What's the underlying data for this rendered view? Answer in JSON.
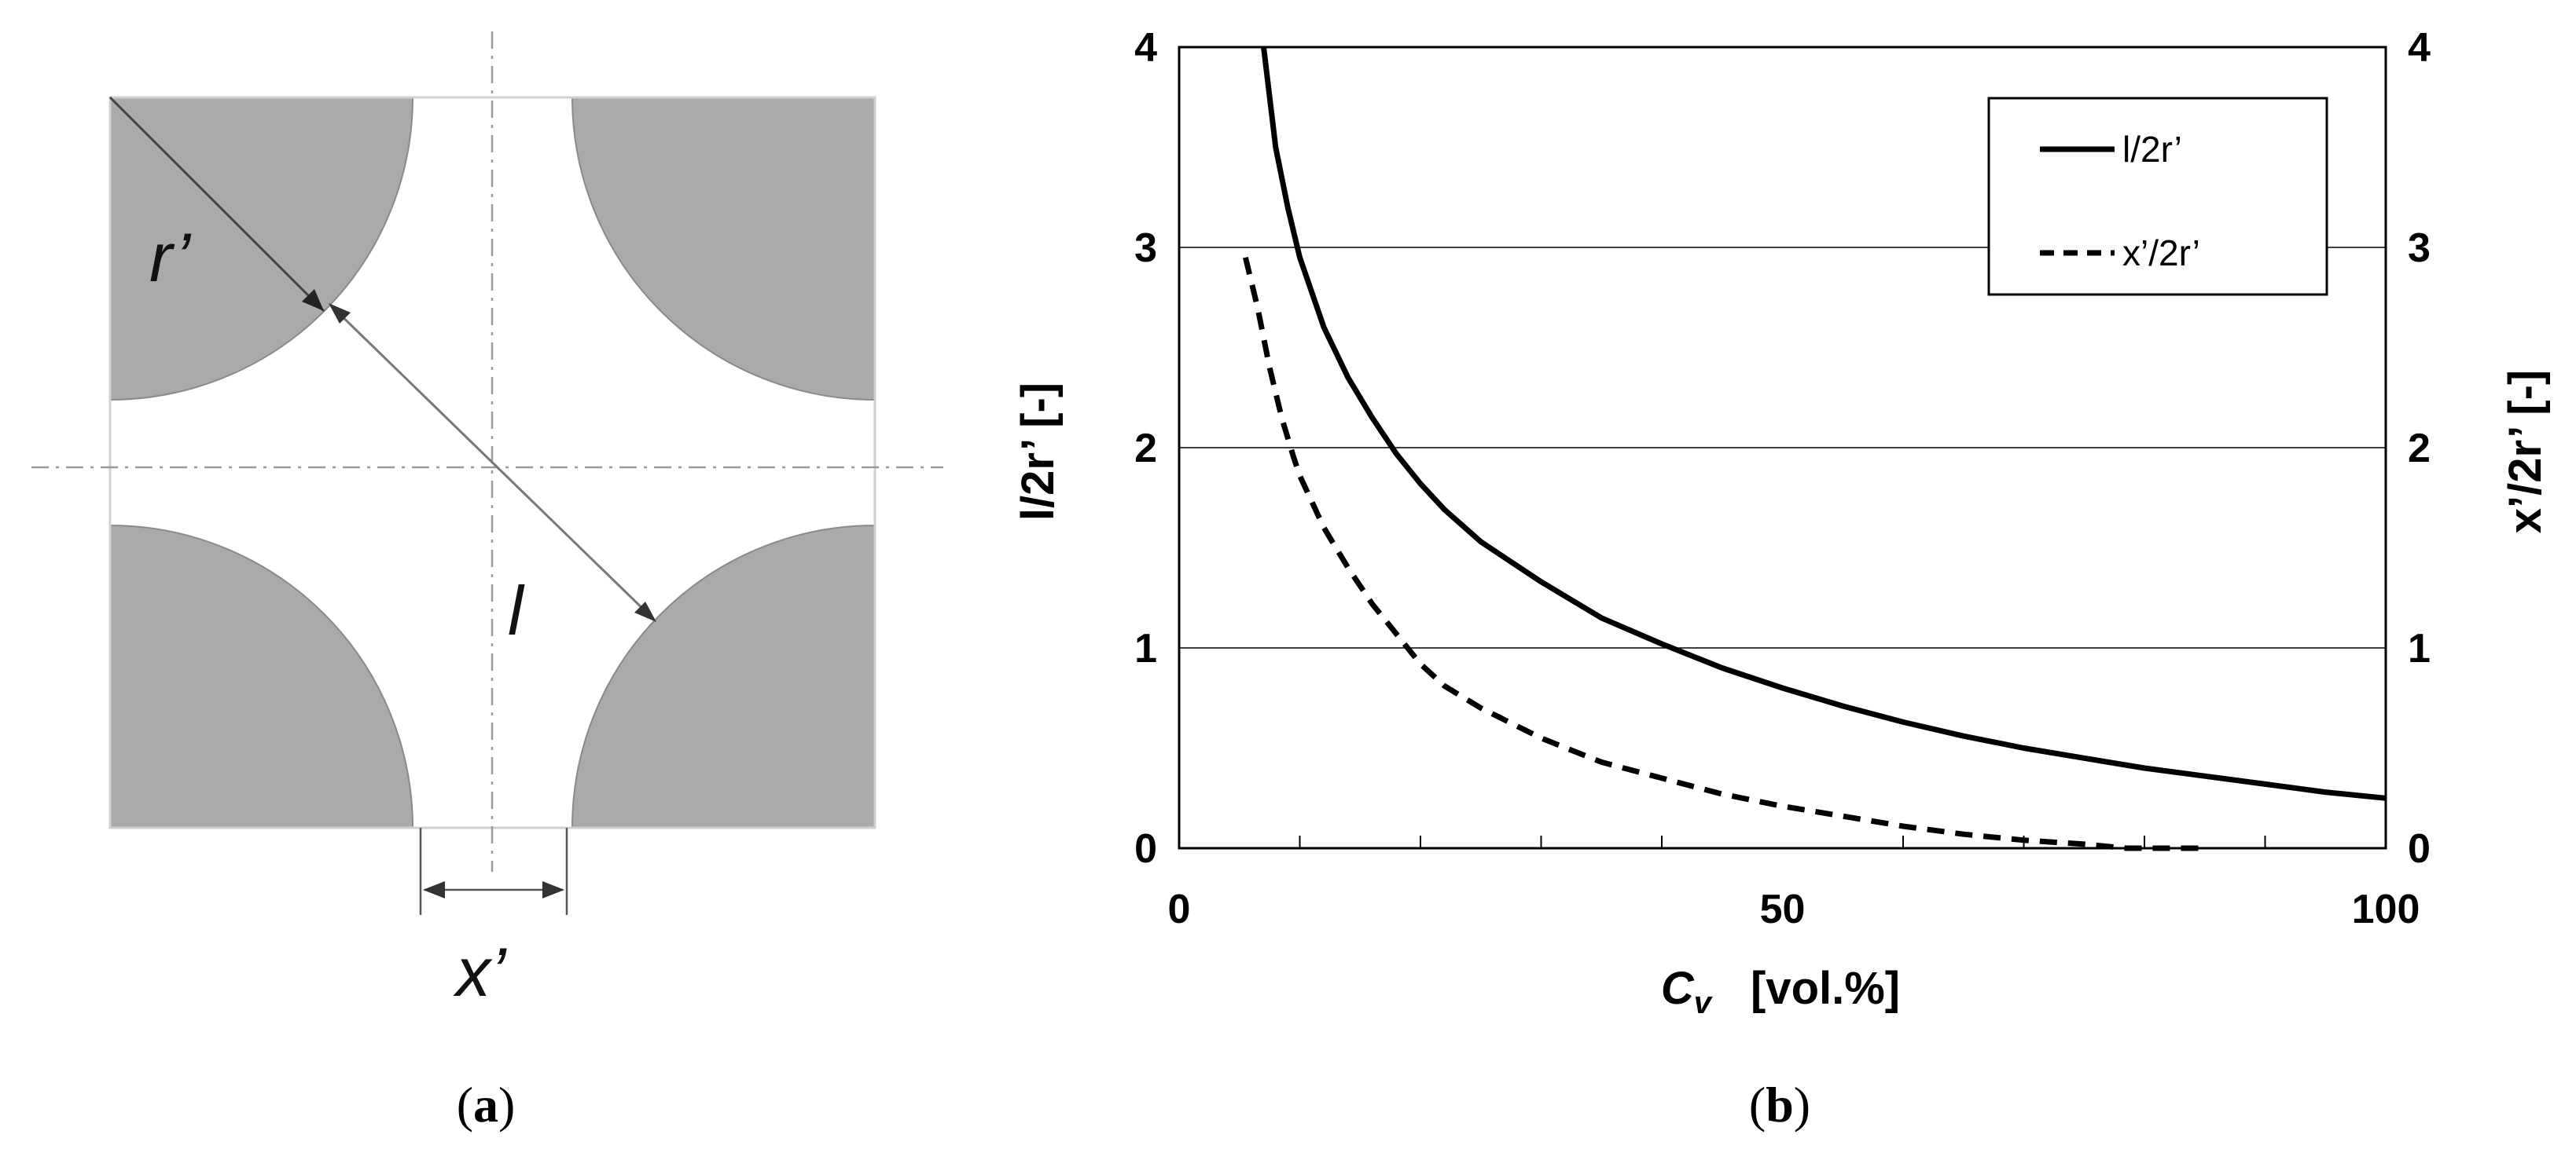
{
  "figure": {
    "panel_a": {
      "caption_open": "(",
      "caption_letter": "a",
      "caption_close": ")",
      "labels": {
        "r": "r’",
        "l": "l",
        "x": "x’"
      },
      "colors": {
        "particle": "#aaaaaa",
        "frame": "#d0d0d0",
        "line": "#555555"
      }
    },
    "panel_b": {
      "caption_open": "(",
      "caption_letter": "b",
      "caption_close": ")"
    }
  },
  "chart_data": {
    "type": "line",
    "x_label_symbol": "C",
    "x_label_sub": "v",
    "x_label_rest": "[vol.%]",
    "y_left_label": "l/2r’  [-]",
    "y_right_label": "x’/2r’  [-]",
    "xlim": [
      0,
      100
    ],
    "ylim": [
      0,
      4
    ],
    "x_ticks": [
      "0",
      "50",
      "100"
    ],
    "x_tick_values": [
      0,
      50,
      100
    ],
    "y_ticks": [
      "0",
      "1",
      "2",
      "3",
      "4"
    ],
    "y_right_ticks": [
      "0",
      "1",
      "2",
      "3",
      "4"
    ],
    "grid": "horizontal",
    "legend_position": "top-right",
    "series": [
      {
        "name": "l/2r’",
        "style": "solid",
        "color": "#000000",
        "x": [
          7,
          8,
          9,
          10,
          12,
          14,
          16,
          18,
          20,
          22,
          25,
          30,
          35,
          40,
          45,
          50,
          55,
          60,
          65,
          70,
          75,
          80,
          85,
          90,
          95,
          100
        ],
        "y": [
          4.0,
          3.5,
          3.2,
          2.95,
          2.6,
          2.35,
          2.15,
          1.97,
          1.82,
          1.69,
          1.53,
          1.33,
          1.15,
          1.02,
          0.9,
          0.8,
          0.71,
          0.63,
          0.56,
          0.5,
          0.45,
          0.4,
          0.36,
          0.32,
          0.28,
          0.25
        ]
      },
      {
        "name": "x’/2r’",
        "style": "dashed",
        "color": "#000000",
        "x": [
          5.5,
          6.5,
          7.5,
          8.5,
          9.5,
          10,
          12,
          14,
          16,
          18,
          20,
          22,
          25,
          30,
          35,
          40,
          45,
          50,
          55,
          60,
          65,
          70,
          75,
          78.5,
          80,
          85
        ],
        "y": [
          2.95,
          2.7,
          2.4,
          2.15,
          1.95,
          1.86,
          1.6,
          1.4,
          1.22,
          1.07,
          0.92,
          0.81,
          0.7,
          0.55,
          0.43,
          0.35,
          0.27,
          0.21,
          0.16,
          0.11,
          0.07,
          0.04,
          0.02,
          0.0,
          0.0,
          0.0
        ]
      }
    ]
  }
}
